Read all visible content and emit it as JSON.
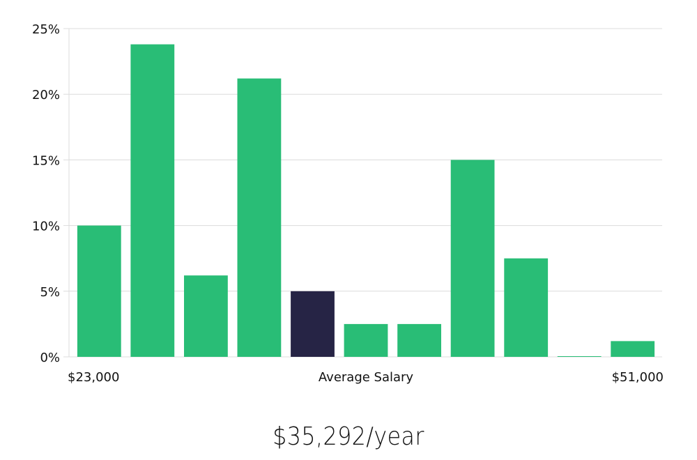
{
  "colors": {
    "bar": "#29bd76",
    "highlight": "#262445",
    "grid": "#dcdcdc",
    "text": "#111111"
  },
  "chart_data": {
    "type": "bar",
    "title": "",
    "ylabel": "",
    "ylim": [
      0,
      25
    ],
    "y_ticks": [
      0,
      5,
      10,
      15,
      20,
      25
    ],
    "y_tick_format": "{v}%",
    "grid": true,
    "x_labels": {
      "left": "$23,000",
      "center": "Average Salary",
      "right": "$51,000"
    },
    "values": [
      10,
      23.8,
      6.2,
      21.2,
      5,
      2.5,
      2.5,
      15,
      7.5,
      0.05,
      1.2
    ],
    "highlight_index": 4
  },
  "summary": {
    "average_salary": "$35,292/year"
  }
}
